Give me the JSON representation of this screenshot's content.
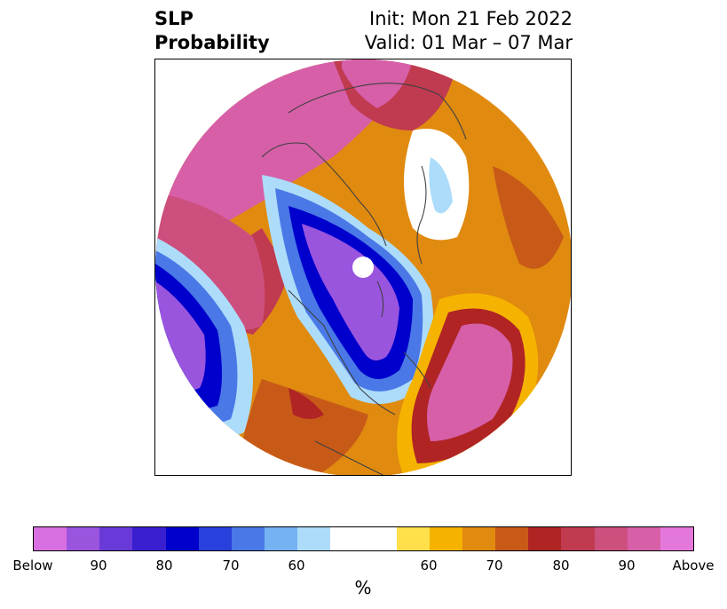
{
  "title": {
    "left_line1": "SLP",
    "left_line2": "Probability",
    "right_line1": "Init: Mon 21 Feb 2022",
    "right_line2": "Valid: 01 Mar – 07 Mar"
  },
  "colorbar": {
    "unit": "%",
    "colors": [
      "#d86fe0",
      "#9a55de",
      "#6a3ad8",
      "#3a1fd0",
      "#0000cc",
      "#2840dc",
      "#4a78e6",
      "#74b2f2",
      "#acdcfa",
      "#ffffff",
      "#ffe04a",
      "#f5b300",
      "#e08a10",
      "#c85a18",
      "#b02424",
      "#c03a50",
      "#cc4f7e",
      "#d65fa8",
      "#e477da"
    ],
    "ticks": [
      "Below",
      "90",
      "80",
      "70",
      "60",
      "60",
      "70",
      "80",
      "90",
      "Above"
    ]
  },
  "map": {
    "projection": "north-polar-stereographic",
    "colors": {
      "deep_below": "#9a55de",
      "below_80": "#3a1fd0",
      "below_70": "#0000cc",
      "below_60": "#4a78e6",
      "below_50": "#acdcfa",
      "above_50": "#ffe04a",
      "above_60": "#f5b300",
      "above_70": "#e08a10",
      "above_75": "#c85a18",
      "above_80": "#b02424",
      "above_85": "#c03a50",
      "above_90": "#d65fa8",
      "coastline": "#404040",
      "pole_marker": "#ffffff"
    }
  }
}
